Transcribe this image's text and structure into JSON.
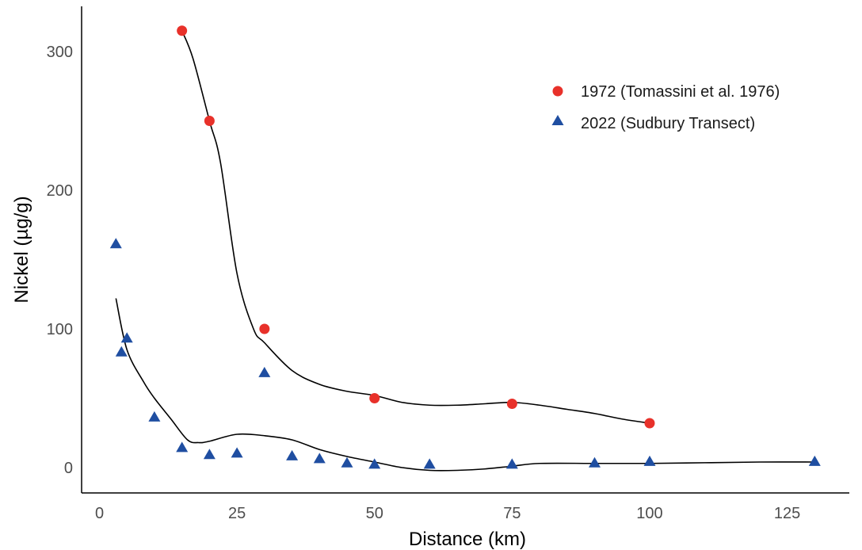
{
  "chart_data": {
    "type": "scatter",
    "title": "",
    "xlabel": "Distance (km)",
    "ylabel": "Nickel (µg/g)",
    "xlim": [
      -4,
      135
    ],
    "ylim": [
      -20,
      333
    ],
    "xticks": [
      0,
      25,
      50,
      75,
      100,
      125
    ],
    "yticks": [
      0,
      100,
      200,
      300
    ],
    "grid": false,
    "legend_position": "top-right",
    "series": [
      {
        "name": "1972 (Tomassini et al. 1976)",
        "marker": "circle",
        "color": "#e8312a",
        "x": [
          15,
          20,
          30,
          50,
          75,
          100
        ],
        "y": [
          315,
          250,
          100,
          50,
          46,
          32
        ],
        "smooth": {
          "x": [
            15,
            17,
            20,
            22,
            25,
            28,
            30,
            35,
            40,
            45,
            50,
            55,
            60,
            65,
            70,
            75,
            80,
            85,
            90,
            95,
            100
          ],
          "y": [
            315,
            295,
            250,
            220,
            140,
            100,
            90,
            70,
            60,
            55,
            52,
            47,
            45,
            45,
            46,
            47,
            45,
            42,
            39,
            35,
            32
          ]
        }
      },
      {
        "name": "2022 (Sudbury Transect)",
        "marker": "triangle",
        "color": "#1f4ea1",
        "x": [
          3,
          4,
          5,
          10,
          15,
          20,
          25,
          30,
          35,
          40,
          45,
          50,
          60,
          75,
          90,
          100,
          130
        ],
        "y": [
          161,
          83,
          93,
          36,
          14,
          9,
          10,
          68,
          8,
          6,
          3,
          2,
          2,
          2,
          3,
          4,
          4
        ],
        "smooth": {
          "x": [
            3,
            5,
            8,
            10,
            13,
            16,
            18,
            20,
            25,
            30,
            35,
            40,
            45,
            50,
            55,
            60,
            65,
            70,
            75,
            80,
            90,
            100,
            110,
            120,
            130
          ],
          "y": [
            122,
            85,
            62,
            50,
            35,
            20,
            18,
            19,
            24,
            23,
            20,
            13,
            8,
            4,
            0,
            -2,
            -2,
            -1,
            1,
            3,
            3,
            3,
            3.5,
            4,
            4
          ]
        }
      }
    ]
  }
}
